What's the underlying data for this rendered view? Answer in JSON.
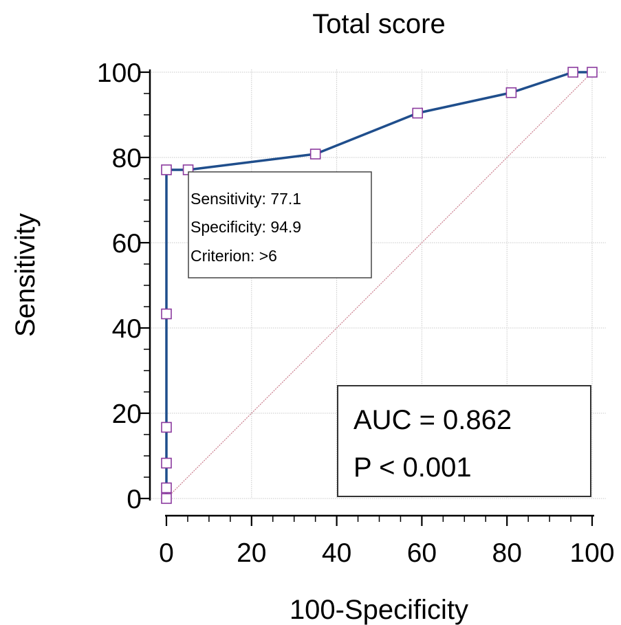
{
  "chart_data": {
    "type": "line",
    "title": "Total score",
    "xlabel": "100-Specificity",
    "ylabel": "Sensitivity",
    "xlim": [
      0,
      100
    ],
    "ylim": [
      0,
      100
    ],
    "x_ticks": [
      "0",
      "20",
      "40",
      "60",
      "80",
      "100"
    ],
    "y_ticks": [
      "0",
      "20",
      "40",
      "60",
      "80",
      "100"
    ],
    "grid": true,
    "series": [
      {
        "color": "#1f4e8c",
        "marker_color": "#8b3a9e",
        "x": [
          0,
          0,
          0,
          0,
          0,
          0,
          5.1,
          35,
          59,
          81,
          95.5,
          100
        ],
        "y": [
          0,
          2.5,
          8.3,
          16.7,
          43.3,
          77.1,
          77.1,
          80.8,
          90.4,
          95.2,
          100,
          100
        ]
      }
    ],
    "reference_line": {
      "x": [
        0,
        100
      ],
      "y": [
        0,
        100
      ],
      "color": "#c97a8a"
    },
    "annotation": {
      "lines": [
        "Sensitivity: 77.1",
        "Specificity: 94.9",
        "Criterion: >6"
      ]
    },
    "stats": {
      "auc": "AUC = 0.862",
      "p": "P < 0.001"
    }
  }
}
